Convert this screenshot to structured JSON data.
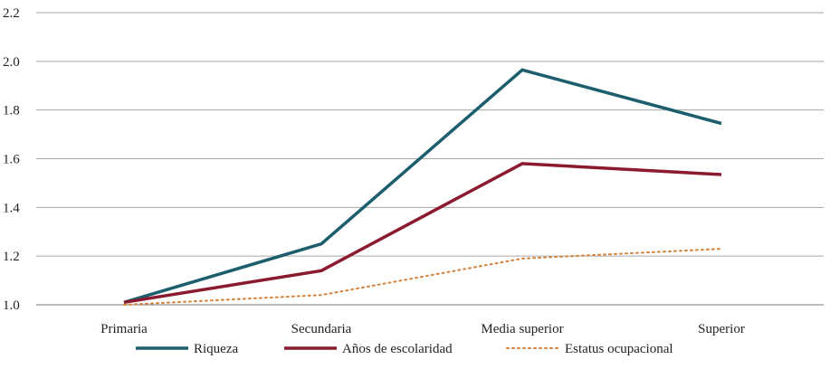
{
  "chart_data": {
    "type": "line",
    "title": "",
    "xlabel": "",
    "ylabel": "",
    "categories": [
      "Primaria",
      "Secundaria",
      "Media superior",
      "Superior"
    ],
    "ylim": [
      1.0,
      2.2
    ],
    "yticks": [
      "1.0",
      "1.2",
      "1.4",
      "1.6",
      "1.8",
      "2.0",
      "2.2"
    ],
    "grid": true,
    "legend_position": "bottom",
    "series": [
      {
        "name": "Riqueza",
        "values": [
          1.01,
          1.25,
          1.965,
          1.745
        ],
        "color": "#1c5e6e",
        "style": "solid"
      },
      {
        "name": "Años de escolaridad",
        "values": [
          1.01,
          1.14,
          1.58,
          1.535
        ],
        "color": "#8b1a2f",
        "style": "solid"
      },
      {
        "name": "Estatus ocupacional",
        "values": [
          1.0,
          1.04,
          1.19,
          1.23
        ],
        "color": "#d2843c",
        "style": "dotted"
      }
    ]
  }
}
